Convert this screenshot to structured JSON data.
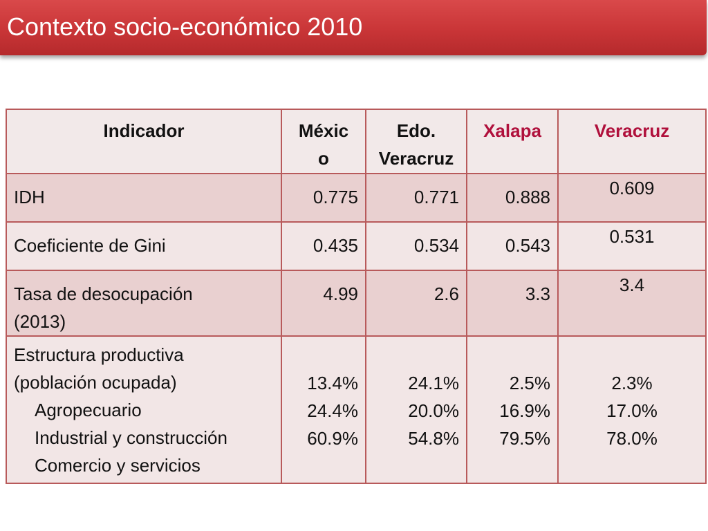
{
  "slide": {
    "title": "Contexto socio-económico 2010"
  },
  "table": {
    "headers": {
      "indicador": "Indicador",
      "mexico_1": "Méxic",
      "mexico_2": "o",
      "edo_1": "Edo.",
      "edo_2": "Veracruz",
      "xalapa": "Xalapa",
      "veracruz": "Veracruz"
    },
    "rows": {
      "idh": {
        "label": "IDH",
        "mexico": "0.775",
        "edo": "0.771",
        "xalapa": "0.888",
        "veracruz": "0.609"
      },
      "gini": {
        "label": "Coeficiente de Gini",
        "mexico": "0.435",
        "edo": "0.534",
        "xalapa": "0.543",
        "veracruz": "0.531"
      },
      "desocupacion": {
        "label_1": "Tasa de desocupación",
        "label_2": "(2013)",
        "mexico": "4.99",
        "edo": "2.6",
        "xalapa": "3.3",
        "veracruz": "3.4"
      },
      "estructura": {
        "label_1": "Estructura productiva",
        "label_2": "(población ocupada)",
        "sub_1": "Agropecuario",
        "sub_2": "Industrial y construcción",
        "sub_3": "Comercio y servicios",
        "mexico": [
          "13.4%",
          "24.4%",
          "60.9%"
        ],
        "edo": [
          "24.1%",
          "20.0%",
          "54.8%"
        ],
        "xalapa": [
          "2.5%",
          "16.9%",
          "79.5%"
        ],
        "veracruz": [
          "2.3%",
          "17.0%",
          "78.0%"
        ]
      }
    }
  },
  "colors": {
    "title_bar": "#c93537",
    "header_accent": "#b0103c",
    "row_dark": "#e9d0d0",
    "row_light": "#f2e6e6"
  }
}
